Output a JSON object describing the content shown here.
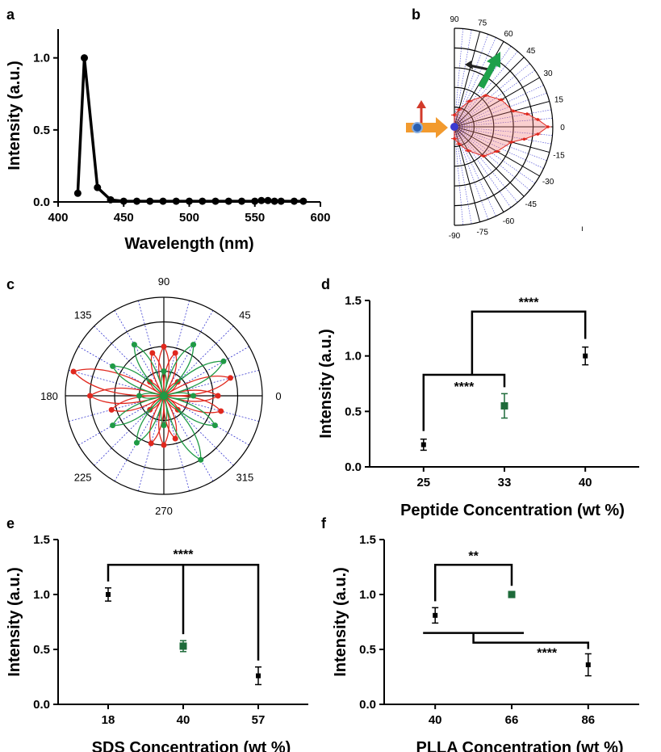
{
  "colors": {
    "black": "#000000",
    "green": "#1e6b3a",
    "red": "#e0281e",
    "dot_green": "#1f9a45",
    "blue": "#3a3ad0",
    "orange": "#f29a2e",
    "arrow_green": "#1ea04a"
  },
  "panel_labels": [
    "a",
    "b",
    "c",
    "d",
    "e",
    "f"
  ],
  "chart_data": [
    {
      "panel": "a",
      "type": "line",
      "xlabel": "Wavelength (nm)",
      "ylabel": "Intensity (a.u.)",
      "xlim": [
        400,
        600
      ],
      "ylim": [
        0,
        1.2
      ],
      "xticks": [
        "400",
        "450",
        "500",
        "550",
        "600"
      ],
      "yticks": [
        "0.0",
        "0.5",
        "1.0"
      ],
      "x": [
        415,
        420,
        430,
        440,
        450,
        460,
        470,
        480,
        490,
        500,
        510,
        520,
        530,
        540,
        550,
        555,
        560,
        565,
        570,
        580,
        587
      ],
      "y": [
        0.06,
        1.0,
        0.1,
        0.015,
        0.005,
        0.005,
        0.005,
        0.005,
        0.005,
        0.005,
        0.005,
        0.005,
        0.005,
        0.005,
        0.005,
        0.01,
        0.01,
        0.005,
        0.005,
        0.005,
        0.005
      ]
    },
    {
      "panel": "b",
      "type": "scatter",
      "subtype": "polar-half",
      "angle_ticks": [
        "90",
        "75",
        "60",
        "45",
        "30",
        "15",
        "0",
        "-15",
        "-30",
        "-45",
        "-60",
        "-75",
        "-90"
      ],
      "corner_mark": "ı",
      "angles": [
        90,
        75,
        60,
        45,
        30,
        15,
        10,
        5,
        0,
        -5,
        -10,
        -15,
        -30,
        -45,
        -60,
        -75,
        -90
      ],
      "values": [
        0.12,
        0.18,
        0.3,
        0.45,
        0.55,
        0.62,
        0.75,
        0.85,
        0.95,
        0.85,
        0.72,
        0.6,
        0.5,
        0.42,
        0.28,
        0.18,
        0.12
      ]
    },
    {
      "panel": "c",
      "type": "scatter",
      "subtype": "polar",
      "angle_ticks": [
        "90",
        "45",
        "0",
        "315",
        "270",
        "225",
        "180",
        "135"
      ],
      "series": [
        {
          "color": "red",
          "angles": [
            0,
            15,
            45,
            75,
            90,
            105,
            135,
            165,
            180,
            195,
            225,
            255,
            270,
            285,
            315,
            345
          ],
          "values": [
            0.55,
            0.7,
            0.2,
            0.45,
            0.5,
            0.45,
            0.2,
            0.95,
            0.75,
            0.55,
            0.2,
            0.5,
            0.5,
            0.45,
            0.2,
            0.6
          ]
        },
        {
          "color": "green",
          "angles": [
            0,
            30,
            60,
            90,
            120,
            150,
            180,
            210,
            240,
            270,
            300,
            330
          ],
          "values": [
            0.3,
            0.7,
            0.6,
            0.25,
            0.6,
            0.6,
            0.25,
            0.6,
            0.55,
            0.3,
            0.75,
            0.6
          ]
        }
      ]
    },
    {
      "panel": "d",
      "type": "scatter",
      "xlabel": "Peptide Concentration (wt %)",
      "ylabel": "Intensity (a.u.)",
      "ylim": [
        0,
        1.5
      ],
      "yticks": [
        "0.0",
        "0.5",
        "1.0",
        "1.5"
      ],
      "categories": [
        "25",
        "33",
        "40"
      ],
      "values": [
        0.2,
        0.55,
        1.0
      ],
      "errors": [
        0.05,
        0.11,
        0.08
      ],
      "highlight_index": 1,
      "significance": [
        {
          "from": 0,
          "to": 1,
          "label": "****",
          "y": 0.83
        },
        {
          "from": "bracket1",
          "to": 2,
          "label": "****",
          "y": 1.4
        }
      ]
    },
    {
      "panel": "e",
      "type": "scatter",
      "xlabel": "SDS Concentration (wt %)",
      "ylabel": "Intensity (a.u.)",
      "ylim": [
        0,
        1.5
      ],
      "yticks": [
        "0.0",
        "0.5",
        "1.0",
        "1.5"
      ],
      "categories": [
        "18",
        "40",
        "57"
      ],
      "values": [
        1.0,
        0.53,
        0.26
      ],
      "errors": [
        0.06,
        0.05,
        0.08
      ],
      "highlight_index": 1,
      "significance": [
        {
          "from": 0,
          "to": 2,
          "label": "****",
          "y": 1.27
        }
      ]
    },
    {
      "panel": "f",
      "type": "scatter",
      "xlabel": "PLLA Concentration (wt %)",
      "ylabel": "Intensity (a.u.)",
      "ylim": [
        0,
        1.5
      ],
      "yticks": [
        "0.0",
        "0.5",
        "1.0",
        "1.5"
      ],
      "categories": [
        "40",
        "66",
        "86"
      ],
      "values": [
        0.81,
        1.0,
        0.36
      ],
      "errors": [
        0.07,
        0.02,
        0.1
      ],
      "highlight_index": 1,
      "significance": [
        {
          "from": 0,
          "to": 1,
          "label": "**",
          "y": 1.27
        },
        {
          "from": "bracket1",
          "to": 2,
          "label": "****",
          "y": 0.65
        }
      ]
    }
  ]
}
